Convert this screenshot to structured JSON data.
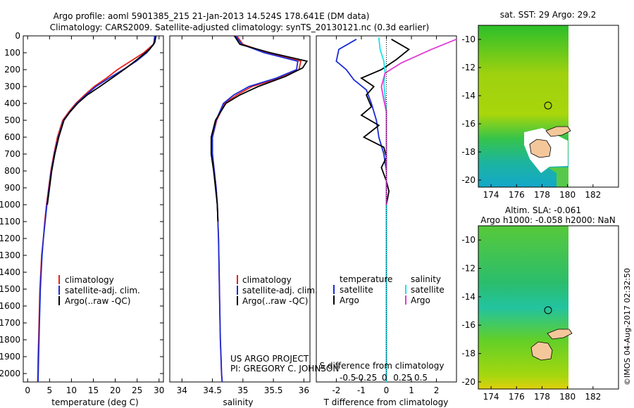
{
  "title": {
    "line1": "Argo profile: aoml 5901385_215 21-Jan-2013 14.524S 178.641E (DM data)",
    "line2": "Climatology: CARS2009. Satellite-adjusted climatology: synTS_20130121.nc (0.3d earlier)"
  },
  "credit": {
    "line1": "US ARGO PROJECT",
    "line2": "PI: GREGORY C. JOHNSON"
  },
  "stamp": "©IMOS 04-Aug-2017 02:32:50",
  "colors": {
    "climatology": "#e8211d",
    "satellite": "#1a2bd6",
    "argo": "#000000",
    "sat_salinity": "#19e3e8",
    "argo_salinity": "#e03ad4"
  },
  "chart_data": [
    {
      "type": "line",
      "panel": "temperature",
      "xlabel": "temperature (deg C)",
      "ylabel": "",
      "xlim": [
        -1,
        31
      ],
      "ylim": [
        2050,
        0
      ],
      "xticks": [
        0,
        5,
        10,
        15,
        20,
        25,
        30
      ],
      "yticks": [
        0,
        100,
        200,
        300,
        400,
        500,
        600,
        700,
        800,
        900,
        1000,
        1100,
        1200,
        1300,
        1400,
        1500,
        1600,
        1700,
        1800,
        1900,
        2000
      ],
      "legend": [
        "climatology",
        "satellite-adj. clim.",
        "Argo(..raw -QC)"
      ],
      "series": [
        {
          "name": "climatology",
          "color_key": "climatology",
          "x": [
            29.2,
            28.7,
            26.5,
            23.5,
            20.5,
            18.0,
            15.2,
            13.0,
            11.0,
            9.4,
            8.0,
            6.8,
            6.0,
            5.3,
            4.8,
            4.3,
            3.9,
            3.6,
            3.2,
            3.0,
            2.8,
            2.6,
            2.5,
            2.4,
            2.3
          ],
          "y": [
            0,
            50,
            100,
            150,
            200,
            250,
            300,
            350,
            400,
            450,
            500,
            600,
            700,
            800,
            900,
            1000,
            1100,
            1200,
            1300,
            1400,
            1500,
            1700,
            1800,
            1900,
            2050
          ]
        },
        {
          "name": "satellite-adj. clim.",
          "color_key": "satellite",
          "x": [
            29.0,
            28.8,
            27.2,
            24.8,
            21.8,
            18.6,
            15.6,
            13.3,
            11.2,
            9.6,
            8.2,
            7.0,
            6.1,
            5.4,
            4.9,
            4.4,
            4.0,
            3.6,
            3.3,
            3.1,
            2.9,
            2.7,
            2.6,
            2.5,
            2.4
          ],
          "y": [
            0,
            50,
            100,
            150,
            200,
            250,
            300,
            350,
            400,
            450,
            500,
            600,
            700,
            800,
            900,
            1000,
            1100,
            1200,
            1300,
            1400,
            1500,
            1700,
            1800,
            1900,
            2050
          ]
        },
        {
          "name": "Argo(..raw -QC)",
          "color_key": "argo",
          "x": [
            29.3,
            29.0,
            27.8,
            25.0,
            22.5,
            19.8,
            16.5,
            13.6,
            11.4,
            9.7,
            8.3,
            7.1,
            6.2,
            5.5,
            5.0,
            4.5
          ],
          "y": [
            0,
            40,
            80,
            140,
            190,
            240,
            300,
            350,
            400,
            450,
            500,
            600,
            700,
            800,
            900,
            1000
          ]
        }
      ]
    },
    {
      "type": "line",
      "panel": "salinity",
      "xlabel": "salinity",
      "xlim": [
        33.8,
        36.1
      ],
      "ylim": [
        2050,
        0
      ],
      "xticks": [
        34,
        34.5,
        35,
        35.5,
        36
      ],
      "xticklabels": [
        "34",
        "34.5",
        "35",
        "35.5",
        "36"
      ],
      "legend": [
        "climatology",
        "satellite-adj. clim.",
        "Argo(..raw -QC)"
      ],
      "series": [
        {
          "name": "climatology",
          "color_key": "climatology",
          "x": [
            34.9,
            35.0,
            35.4,
            35.95,
            35.92,
            35.6,
            35.15,
            34.9,
            34.7,
            34.57,
            34.5,
            34.5,
            34.53,
            34.56,
            34.58,
            34.6,
            34.61,
            34.62,
            34.63,
            34.64,
            34.65,
            34.66
          ],
          "y": [
            0,
            50,
            100,
            150,
            200,
            250,
            300,
            350,
            400,
            500,
            600,
            700,
            800,
            900,
            1000,
            1200,
            1400,
            1600,
            1800,
            1900,
            2000,
            2050
          ]
        },
        {
          "name": "satellite-adj. clim.",
          "color_key": "satellite",
          "x": [
            34.88,
            34.98,
            35.35,
            35.9,
            35.88,
            35.55,
            35.1,
            34.85,
            34.68,
            34.56,
            34.5,
            34.5,
            34.53,
            34.56,
            34.58,
            34.6,
            34.61,
            34.62,
            34.63,
            34.64,
            34.65,
            34.66
          ],
          "y": [
            0,
            50,
            100,
            150,
            200,
            250,
            300,
            350,
            400,
            500,
            600,
            700,
            800,
            900,
            1000,
            1200,
            1400,
            1600,
            1800,
            1900,
            2000,
            2050
          ]
        },
        {
          "name": "Argo(..raw -QC)",
          "color_key": "argo",
          "x": [
            34.86,
            34.95,
            35.45,
            36.05,
            35.98,
            35.7,
            35.25,
            34.95,
            34.72,
            34.55,
            34.48,
            34.48,
            34.52,
            34.55,
            34.58,
            34.59
          ],
          "y": [
            0,
            50,
            100,
            150,
            190,
            240,
            300,
            350,
            400,
            500,
            600,
            700,
            800,
            900,
            1000,
            1100
          ]
        }
      ]
    },
    {
      "type": "line",
      "panel": "difference",
      "xlabel": "T difference from climatology",
      "xlabel2": "S difference from climatology",
      "xlim": [
        -2.8,
        2.8
      ],
      "ylim": [
        2050,
        0
      ],
      "xticks": [
        -2,
        -1,
        0,
        1,
        2
      ],
      "sxticks": [
        -0.5,
        -0.25,
        0,
        0.25,
        0.5
      ],
      "sxticklabels": [
        "-0.5",
        "-0.25",
        "0",
        "0.25",
        "0.5"
      ],
      "legend_groups": [
        {
          "title": "temperature",
          "items": [
            "satellite",
            "Argo"
          ]
        },
        {
          "title": "salinity",
          "items": [
            "satellite",
            "Argo"
          ]
        }
      ],
      "series": [
        {
          "name": "temperature satellite",
          "color_key": "satellite",
          "x": [
            -1.2,
            -1.9,
            -2.0,
            -1.6,
            -1.3,
            -0.8,
            -0.6,
            -0.4,
            -0.3,
            -0.1,
            0.0,
            0.0,
            0.0,
            0.0,
            0.0,
            0.0
          ],
          "y": [
            20,
            80,
            150,
            200,
            260,
            320,
            400,
            500,
            600,
            700,
            800,
            1000,
            1200,
            1500,
            1800,
            2050
          ]
        },
        {
          "name": "temperature Argo",
          "color_key": "argo",
          "x": [
            0.2,
            0.9,
            0.4,
            -0.2,
            -1.0,
            -0.5,
            -0.8,
            -0.6,
            -1.0,
            -0.3,
            -0.9,
            -0.1,
            0.0,
            -0.2,
            0.0,
            0.1,
            0.0,
            0.0
          ],
          "y": [
            20,
            80,
            140,
            200,
            250,
            300,
            350,
            420,
            470,
            530,
            600,
            660,
            720,
            780,
            860,
            920,
            1000,
            1050
          ]
        },
        {
          "name": "salinity satellite",
          "color_key": "sat_salinity",
          "x": [
            -0.3,
            -0.25,
            -0.1,
            -0.05,
            -0.1,
            -0.05,
            0.0,
            0.0,
            0.0,
            0.0,
            0.0,
            0.0,
            0.0
          ],
          "y": [
            10,
            80,
            150,
            220,
            280,
            360,
            450,
            600,
            800,
            1000,
            1400,
            1800,
            2050
          ]
        },
        {
          "name": "salinity Argo",
          "color_key": "argo_salinity",
          "x": [
            2.8,
            1.8,
            0.6,
            -0.05,
            -0.2,
            -0.1,
            0.0,
            0.0,
            0.0,
            0.0
          ],
          "y": [
            20,
            80,
            160,
            220,
            300,
            380,
            450,
            600,
            800,
            1000
          ]
        }
      ]
    },
    {
      "type": "heatmap",
      "panel": "sst-map",
      "title": "sat. SST: 29 Argo: 29.2",
      "xlim": [
        173,
        184
      ],
      "ylim": [
        -20.5,
        -9
      ],
      "xticks": [
        174,
        176,
        178,
        180,
        182
      ],
      "yticks": [
        -10,
        -12,
        -14,
        -16,
        -18,
        -20
      ],
      "marker": {
        "lon": 178.641,
        "lat": -14.524
      },
      "land_gap_from_lon": 180
    },
    {
      "type": "heatmap",
      "panel": "sla-map",
      "title": "Altim. SLA: -0.061",
      "subtitle": "Argo h1000: -0.058 h2000: NaN",
      "xlim": [
        173,
        184
      ],
      "ylim": [
        -20.5,
        -9
      ],
      "xticks": [
        174,
        176,
        178,
        180,
        182
      ],
      "yticks": [
        -10,
        -12,
        -14,
        -16,
        -18,
        -20
      ],
      "marker": {
        "lon": 178.641,
        "lat": -14.524
      },
      "land_gap_from_lon": 180
    }
  ]
}
